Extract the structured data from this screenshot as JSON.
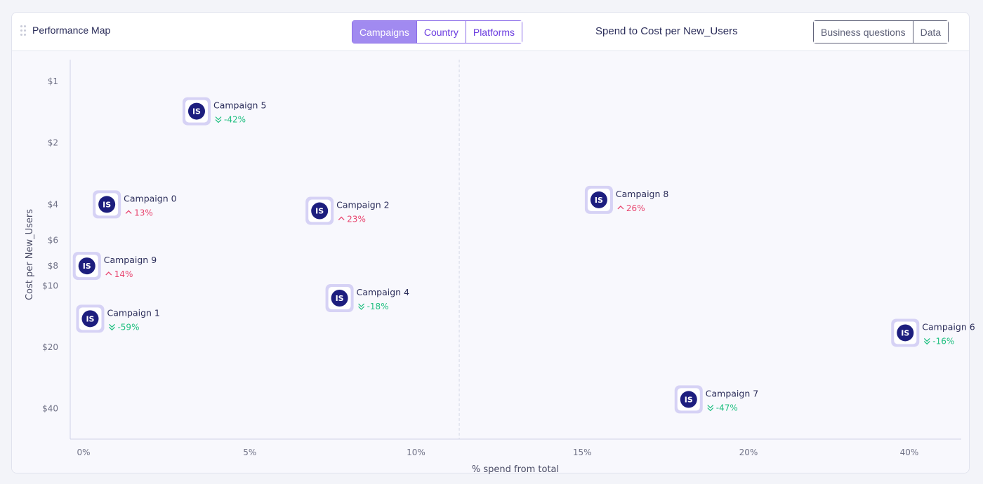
{
  "header": {
    "title": "Performance Map",
    "tabs": [
      {
        "label": "Campaigns",
        "active": true
      },
      {
        "label": "Country",
        "active": false
      },
      {
        "label": "Platforms",
        "active": false
      }
    ],
    "chart_title": "Spend to Cost per New_Users",
    "views": [
      {
        "label": "Business questions"
      },
      {
        "label": "Data"
      }
    ]
  },
  "colors": {
    "accent": "#8a6be8",
    "active_tab_bg": "#a18af0",
    "point_logo_bg": "#1d1e7e",
    "point_halo": "#d6d2f5",
    "delta_down": "#1fbf80",
    "delta_up": "#e8456f"
  },
  "chart_data": {
    "type": "scatter",
    "title": "Spend to Cost per New_Users",
    "xlabel": "% spend from total",
    "ylabel": "Cost per New_Users",
    "x_ticks": [
      "0%",
      "5%",
      "10%",
      "15%",
      "20%",
      "40%"
    ],
    "y_ticks": [
      "$1",
      "$2",
      "$4",
      "$6",
      "$8",
      "$10",
      "$20",
      "$40"
    ],
    "y_scale": "log",
    "x_scale": "broken (20% jumps to 40%)",
    "reference_line_x": 11.3,
    "points": [
      {
        "name": "Campaign 5",
        "x": 3.4,
        "y": 1.4,
        "delta": "-42%",
        "direction": "down"
      },
      {
        "name": "Campaign 0",
        "x": 0.7,
        "y": 4.0,
        "delta": "13%",
        "direction": "up"
      },
      {
        "name": "Campaign 2",
        "x": 7.1,
        "y": 4.3,
        "delta": "23%",
        "direction": "up"
      },
      {
        "name": "Campaign 8",
        "x": 15.5,
        "y": 3.8,
        "delta": "26%",
        "direction": "up"
      },
      {
        "name": "Campaign 9",
        "x": 0.1,
        "y": 8.0,
        "delta": "14%",
        "direction": "up"
      },
      {
        "name": "Campaign 4",
        "x": 7.7,
        "y": 11.5,
        "delta": "-18%",
        "direction": "down"
      },
      {
        "name": "Campaign 1",
        "x": 0.2,
        "y": 14.5,
        "delta": "-59%",
        "direction": "down"
      },
      {
        "name": "Campaign 6",
        "x": 39.5,
        "y": 17.0,
        "delta": "-16%",
        "direction": "down"
      },
      {
        "name": "Campaign 7",
        "x": 18.2,
        "y": 36.0,
        "delta": "-47%",
        "direction": "down"
      }
    ],
    "logo_text": "IS"
  }
}
